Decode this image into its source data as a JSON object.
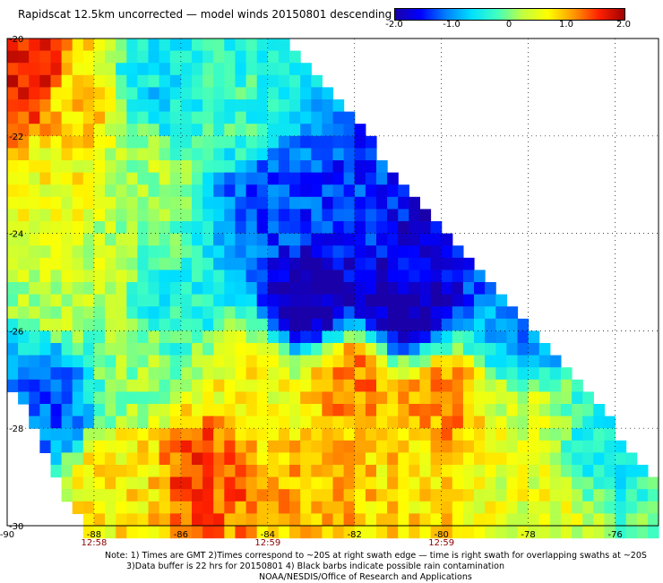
{
  "title": "Rapidscat 12.5km uncorrected — model winds 20150801 descending",
  "colorbar": {
    "ticks": [
      "-2.0",
      "-1.0",
      "0",
      "1.0",
      "2.0"
    ],
    "tick_values": [
      -2.0,
      -1.0,
      0,
      1.0,
      2.0
    ],
    "range": [
      -2.0,
      2.0
    ],
    "colors": [
      "#1a00a8",
      "#0000ff",
      "#0080ff",
      "#00e0ff",
      "#40ffc0",
      "#c0ff40",
      "#ffff00",
      "#ff9900",
      "#ff2000",
      "#a00000"
    ]
  },
  "chart_data": {
    "type": "heatmap",
    "title": "Rapidscat 12.5km uncorrected — model winds 20150801 descending",
    "xlabel": "",
    "ylabel": "",
    "xlim": [
      -90,
      -75
    ],
    "ylim": [
      -30,
      -20
    ],
    "x_ticks": [
      -90,
      -88,
      -86,
      -84,
      -82,
      -80,
      -78,
      -76
    ],
    "x_tick_labels": [
      "-90",
      "-88",
      "-86",
      "-84",
      "-82",
      "-80",
      "-78",
      "-76"
    ],
    "y_ticks": [
      -20,
      -22,
      -24,
      -26,
      -28,
      -30
    ],
    "y_tick_labels": [
      "-20",
      "-22",
      "-24",
      "-26",
      "-28",
      "-30"
    ],
    "grid": true,
    "swath_times": [
      {
        "lon": -88,
        "label": "12:58"
      },
      {
        "lon": -84,
        "label": "12:59"
      },
      {
        "lon": -80,
        "label": "12:59"
      }
    ],
    "value_range": [
      -2.0,
      2.0
    ],
    "regions": [
      {
        "lon": -89.5,
        "lat": -21.0,
        "value": 1.6
      },
      {
        "lon": -88.5,
        "lat": -21.5,
        "value": 0.8
      },
      {
        "lon": -86.5,
        "lat": -21.0,
        "value": -0.6
      },
      {
        "lon": -85.0,
        "lat": -21.5,
        "value": -0.3
      },
      {
        "lon": -89.0,
        "lat": -23.0,
        "value": 0.6
      },
      {
        "lon": -87.0,
        "lat": -23.0,
        "value": 0.2
      },
      {
        "lon": -84.0,
        "lat": -23.5,
        "value": -1.3
      },
      {
        "lon": -82.0,
        "lat": -23.5,
        "value": -1.4
      },
      {
        "lon": -80.5,
        "lat": -24.5,
        "value": -1.7
      },
      {
        "lon": -83.0,
        "lat": -25.3,
        "value": -2.0
      },
      {
        "lon": -81.0,
        "lat": -25.5,
        "value": -2.0
      },
      {
        "lon": -78.0,
        "lat": -26.0,
        "value": -1.0
      },
      {
        "lon": -88.5,
        "lat": -25.0,
        "value": 0.3
      },
      {
        "lon": -86.0,
        "lat": -25.5,
        "value": -0.4
      },
      {
        "lon": -89.0,
        "lat": -27.5,
        "value": -1.2
      },
      {
        "lon": -87.0,
        "lat": -27.0,
        "value": 0.1
      },
      {
        "lon": -84.5,
        "lat": -27.0,
        "value": 0.6
      },
      {
        "lon": -82.0,
        "lat": -27.0,
        "value": 1.2
      },
      {
        "lon": -80.0,
        "lat": -27.5,
        "value": 1.1
      },
      {
        "lon": -78.0,
        "lat": -28.0,
        "value": 0.4
      },
      {
        "lon": -76.5,
        "lat": -28.5,
        "value": -0.5
      },
      {
        "lon": -87.5,
        "lat": -29.0,
        "value": 0.7
      },
      {
        "lon": -85.5,
        "lat": -28.8,
        "value": 1.4
      },
      {
        "lon": -83.0,
        "lat": -29.3,
        "value": 1.0
      },
      {
        "lon": -80.5,
        "lat": -29.5,
        "value": 0.8
      },
      {
        "lon": -77.5,
        "lat": -29.5,
        "value": 0.5
      }
    ]
  },
  "notes": {
    "line1": "Note: 1) Times are GMT 2)Times correspond to ~20S at right swath edge — time is right swath for overlapping swaths at ~20S",
    "line2": "3)Data buffer is 22 hrs for 20150801 4) Black barbs indicate possible rain contamination",
    "line3": "NOAA/NESDIS/Office of Research and Applications"
  }
}
